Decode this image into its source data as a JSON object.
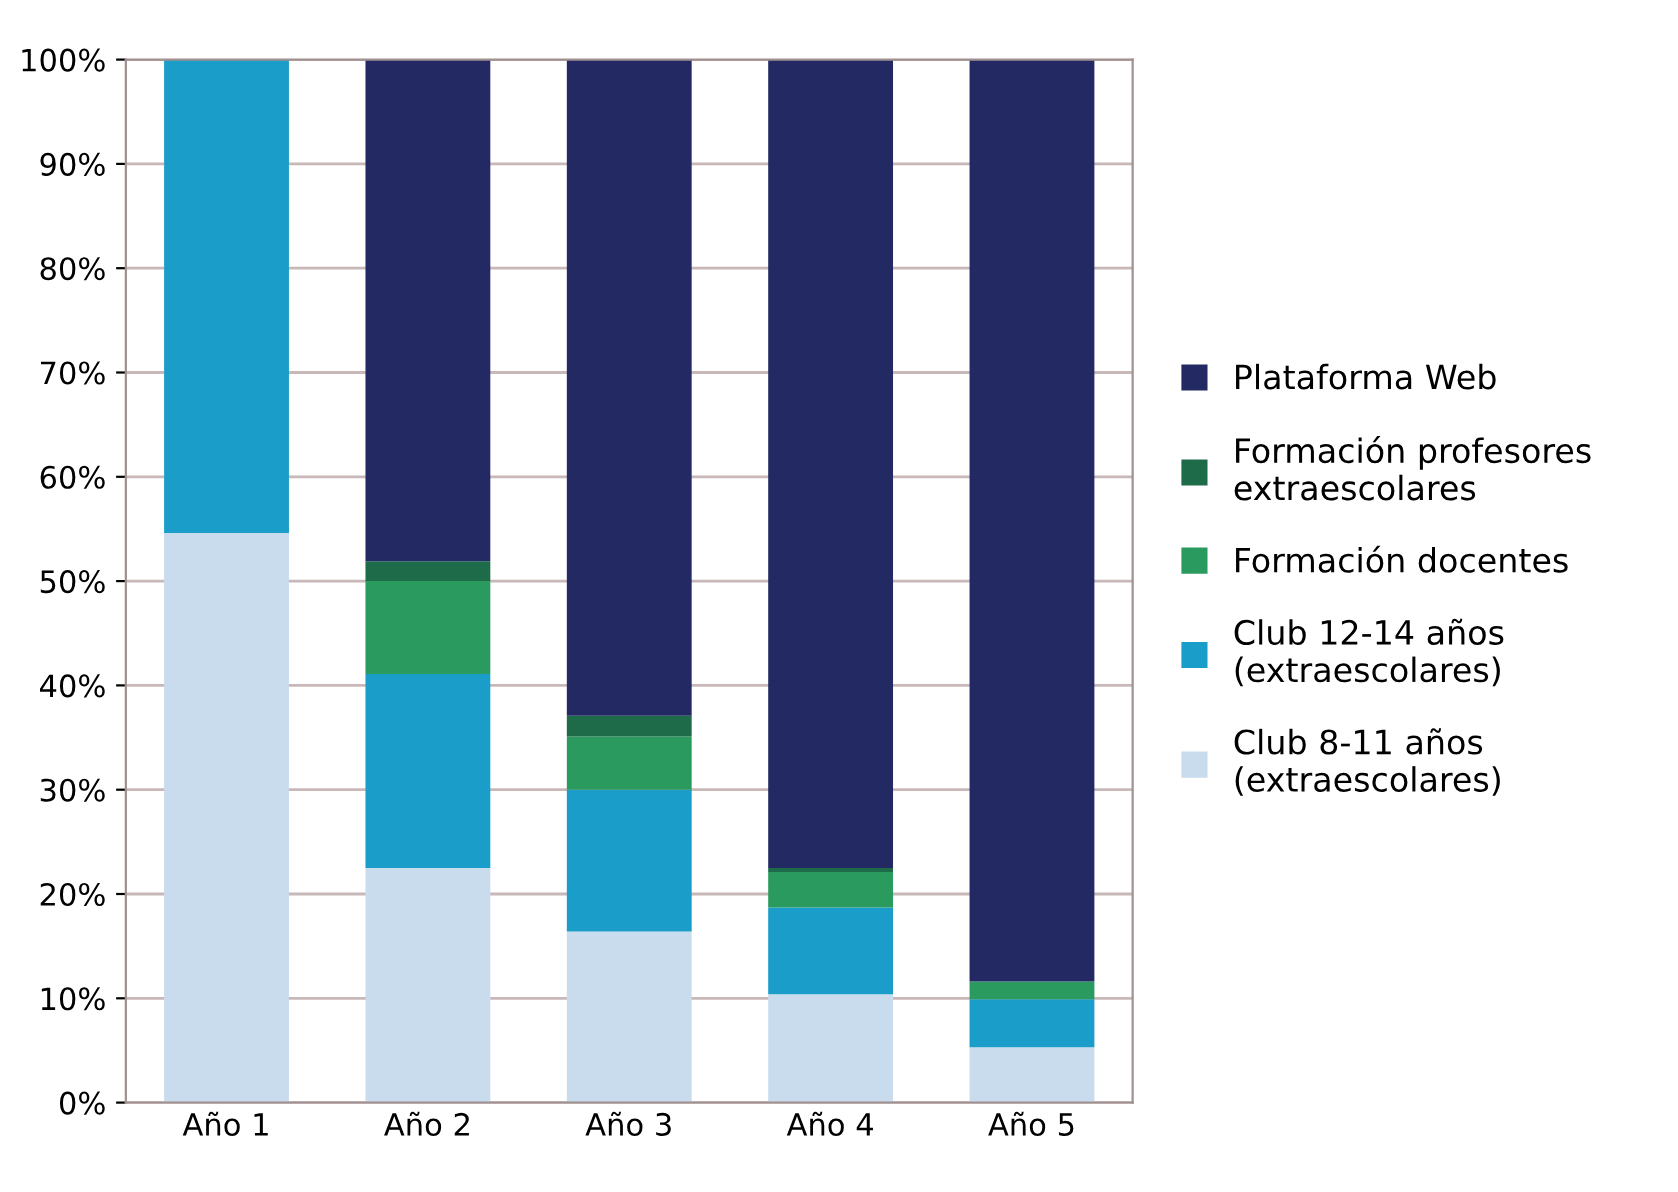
{
  "chart_data": {
    "type": "bar",
    "stacked": true,
    "categories": [
      "Año 1",
      "Año 2",
      "Año 3",
      "Año 4",
      "Año 5"
    ],
    "series": [
      {
        "name": "Club 8-11 años\n(extraescolares)",
        "color": "#c9dcee",
        "values": [
          54.6,
          22.5,
          16.4,
          10.4,
          5.3
        ]
      },
      {
        "name": "Club 12-14 años\n(extraescolares)",
        "color": "#1a9dc8",
        "values": [
          45.4,
          18.6,
          13.6,
          8.3,
          4.6
        ]
      },
      {
        "name": "Formación docentes",
        "color": "#2a9a5e",
        "values": [
          0,
          8.9,
          5.1,
          3.4,
          1.7
        ]
      },
      {
        "name": "Formación profesores\nextraescolares",
        "color": "#1e6b4a",
        "values": [
          0,
          1.9,
          2.0,
          0.4,
          0
        ]
      },
      {
        "name": "Plataforma Web",
        "color": "#232a63",
        "values": [
          0,
          48.1,
          62.9,
          77.5,
          88.4
        ]
      }
    ],
    "ylim": [
      0,
      100
    ],
    "yticks": [
      {
        "value": 0,
        "label": "0%"
      },
      {
        "value": 10,
        "label": "10%"
      },
      {
        "value": 20,
        "label": "20%"
      },
      {
        "value": 30,
        "label": "30%"
      },
      {
        "value": 40,
        "label": "40%"
      },
      {
        "value": 50,
        "label": "50%"
      },
      {
        "value": 60,
        "label": "60%"
      },
      {
        "value": 70,
        "label": "70%"
      },
      {
        "value": 80,
        "label": "80%"
      },
      {
        "value": 90,
        "label": "90%"
      },
      {
        "value": 100,
        "label": "100%"
      }
    ],
    "grid": "y",
    "legend": "right"
  }
}
